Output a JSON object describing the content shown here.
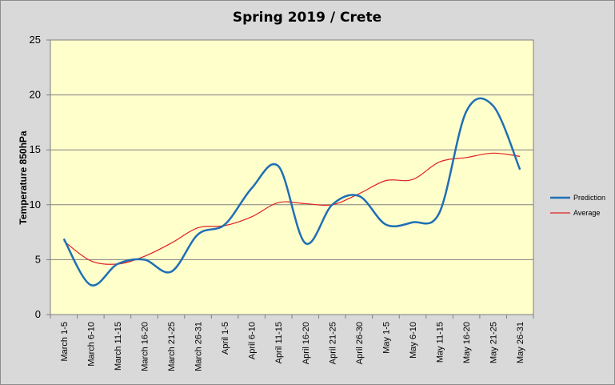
{
  "chart_data": {
    "type": "line",
    "title": "Spring 2019 / Crete",
    "xlabel": "",
    "ylabel": "Temperature 850hPa",
    "ylim": [
      0,
      25
    ],
    "yticks": [
      0,
      5,
      10,
      15,
      20,
      25
    ],
    "grid": "horizontal",
    "legend": "right",
    "categories": [
      "March 1-5",
      "March 6-10",
      "March 11-15",
      "March 16-20",
      "March 21-25",
      "March 26-31",
      "April 1-5",
      "April 6-10",
      "April 11-15",
      "April 16-20",
      "April 21-25",
      "April 26-30",
      "May 1-5",
      "May 6-10",
      "May 11-15",
      "May 16-20",
      "May 21-25",
      "May 26-31"
    ],
    "series": [
      {
        "name": "Prediction",
        "color": "#1f6fb5",
        "values": [
          6.9,
          2.7,
          4.6,
          5.0,
          3.9,
          7.3,
          8.2,
          11.5,
          13.5,
          6.5,
          10.0,
          10.8,
          8.2,
          8.4,
          9.3,
          18.5,
          19.0,
          13.2
        ]
      },
      {
        "name": "Average",
        "color": "#e02020",
        "values": [
          6.7,
          4.9,
          4.6,
          5.3,
          6.5,
          7.9,
          8.1,
          8.9,
          10.2,
          10.1,
          10.0,
          11.0,
          12.2,
          12.3,
          13.9,
          14.3,
          14.7,
          14.4
        ]
      }
    ],
    "plot_background": "#ffffcc",
    "figure_background": "#d9d9d9"
  }
}
